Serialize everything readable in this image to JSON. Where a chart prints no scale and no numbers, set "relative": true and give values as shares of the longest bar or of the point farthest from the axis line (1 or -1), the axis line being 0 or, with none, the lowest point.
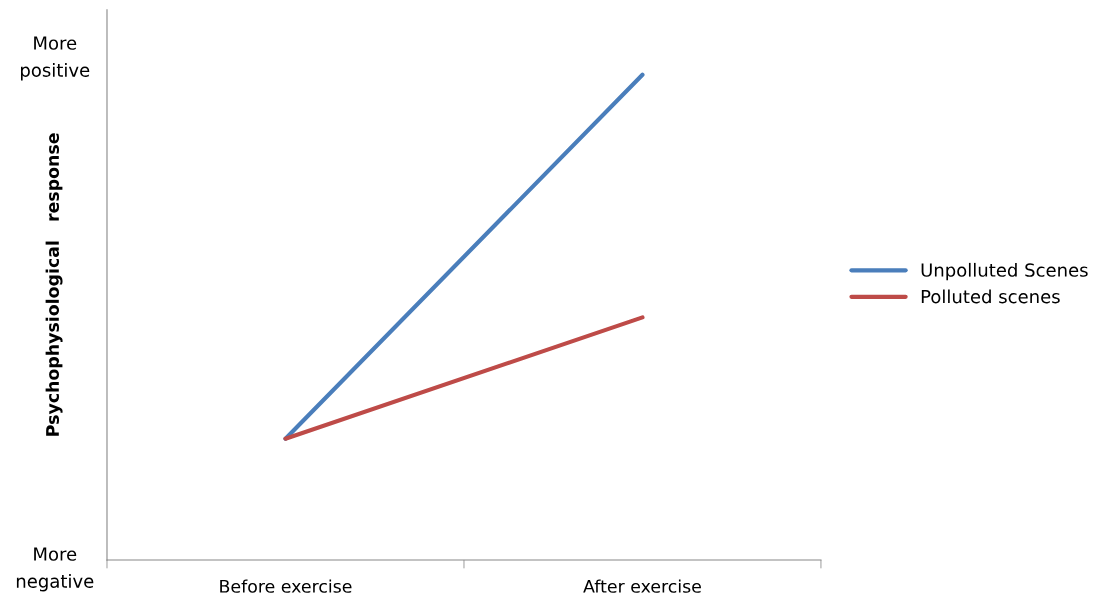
{
  "chart_data": {
    "type": "line",
    "relative": true,
    "ylabel": "Psychophysiological   response",
    "categories": [
      "Before exercise",
      "After exercise"
    ],
    "series": [
      {
        "name": "Unpolluted Scenes",
        "color": "#4a7ebb",
        "values": [
          0.25,
          1
        ]
      },
      {
        "name": "Polluted scenes",
        "color": "#be4b48",
        "values": [
          0.25,
          0.5
        ]
      }
    ],
    "annotations": [
      "More\npositive",
      "More\nnegative"
    ],
    "legend": "right",
    "grid": false,
    "marker": "none",
    "line_style": "solid"
  }
}
